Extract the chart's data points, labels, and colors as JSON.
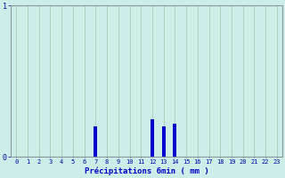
{
  "hours": [
    0,
    1,
    2,
    3,
    4,
    5,
    6,
    7,
    8,
    9,
    10,
    11,
    12,
    13,
    14,
    15,
    16,
    17,
    18,
    19,
    20,
    21,
    22,
    23
  ],
  "values": [
    0,
    0,
    0,
    0,
    0,
    0,
    0,
    0.2,
    0,
    0,
    0,
    0,
    0.25,
    0.2,
    0.22,
    0,
    0,
    0,
    0,
    0,
    0,
    0,
    0,
    0
  ],
  "xlabel": "Précipitations 6min ( mm )",
  "ylim": [
    0,
    1.0
  ],
  "xlim": [
    -0.5,
    23.5
  ],
  "yticks": [
    0,
    1
  ],
  "ytick_labels": [
    "0",
    "1"
  ],
  "xticks": [
    0,
    1,
    2,
    3,
    4,
    5,
    6,
    7,
    8,
    9,
    10,
    11,
    12,
    13,
    14,
    15,
    16,
    17,
    18,
    19,
    20,
    21,
    22,
    23
  ],
  "bar_color": "#0000cc",
  "background_color": "#cceee8",
  "grid_color": "#aaccbb",
  "axis_color": "#889999",
  "tick_color": "#0000aa",
  "label_color": "#0000cc",
  "bar_width": 0.3
}
